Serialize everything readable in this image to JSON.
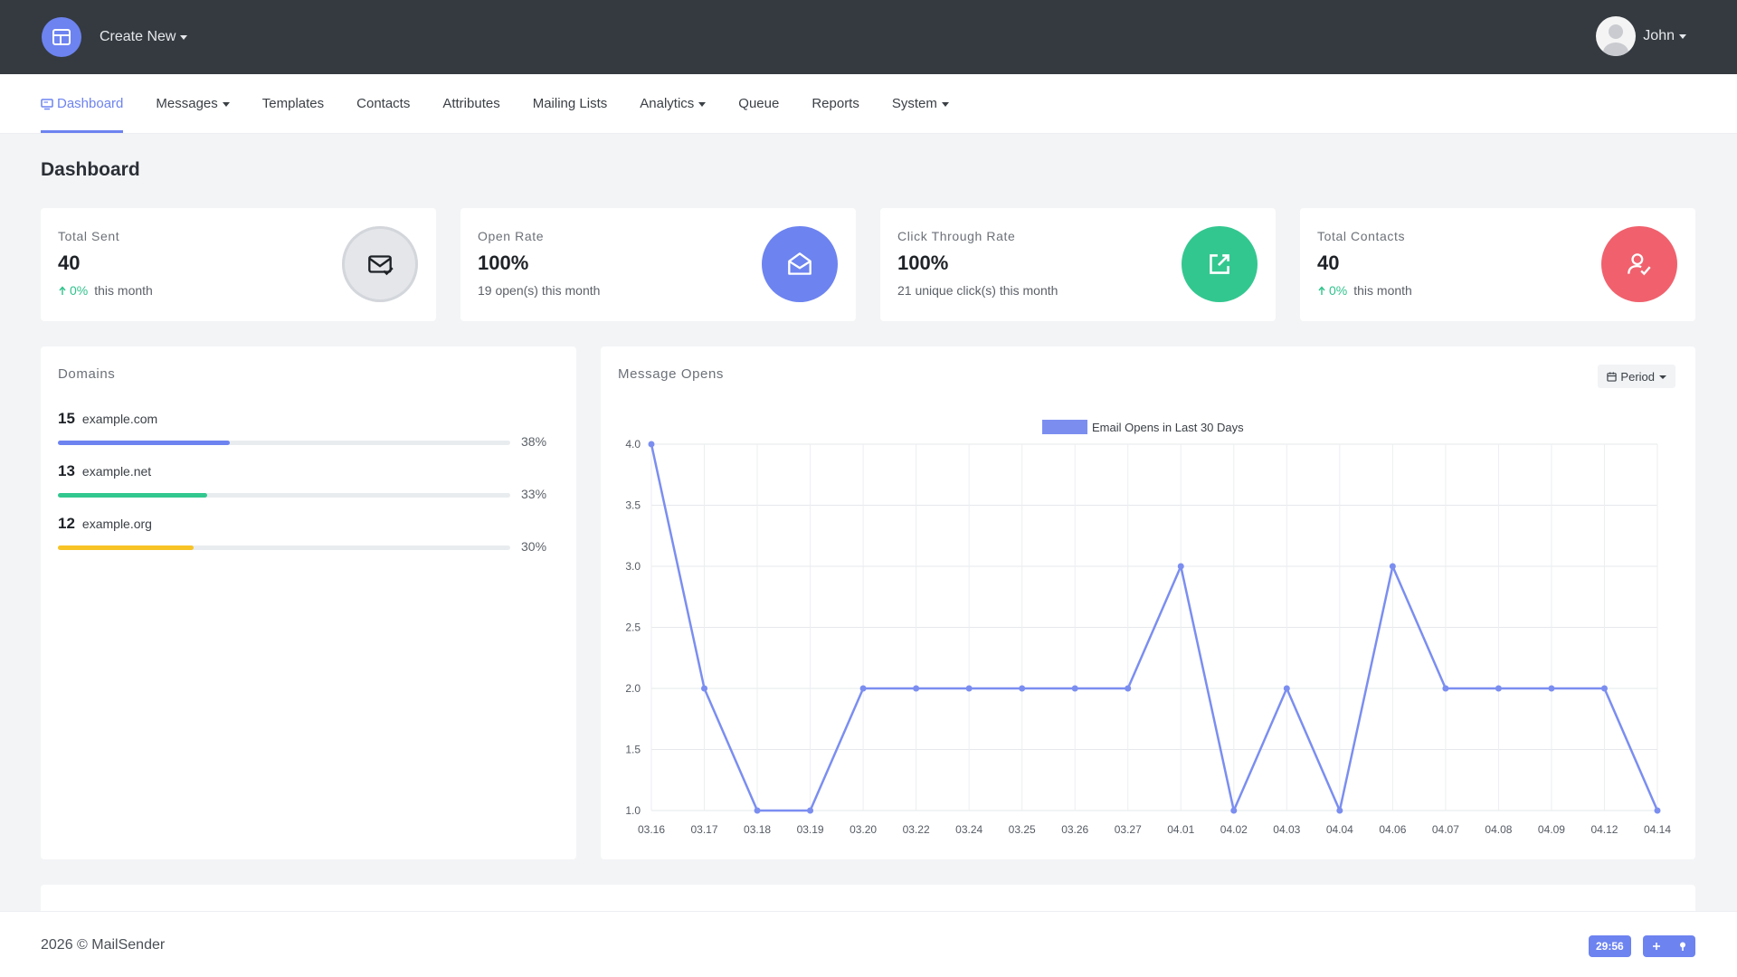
{
  "topbar": {
    "create_new_label": "Create New",
    "user_name": "John"
  },
  "nav": {
    "items": [
      {
        "label": "Dashboard",
        "active": true,
        "dropdown": false
      },
      {
        "label": "Messages",
        "dropdown": true
      },
      {
        "label": "Templates",
        "dropdown": false
      },
      {
        "label": "Contacts",
        "dropdown": false
      },
      {
        "label": "Attributes",
        "dropdown": false
      },
      {
        "label": "Mailing Lists",
        "dropdown": false
      },
      {
        "label": "Analytics",
        "dropdown": true
      },
      {
        "label": "Queue",
        "dropdown": false
      },
      {
        "label": "Reports",
        "dropdown": false
      },
      {
        "label": "System",
        "dropdown": true
      }
    ]
  },
  "page": {
    "title": "Dashboard"
  },
  "stats": [
    {
      "label": "Total Sent",
      "value": "40",
      "change": "0%",
      "sub": "this month",
      "icon": "mail-check-icon",
      "icon_bg": "#e4e6ea",
      "icon_color": "#1f2328"
    },
    {
      "label": "Open Rate",
      "value": "100%",
      "change": "",
      "sub": "19 open(s) this month",
      "icon": "mail-open-icon",
      "icon_bg": "#6d83f0",
      "icon_color": "#ffffff"
    },
    {
      "label": "Click Through Rate",
      "value": "100%",
      "change": "",
      "sub": "21 unique click(s) this month",
      "icon": "external-link-icon",
      "icon_bg": "#33c790",
      "icon_color": "#ffffff"
    },
    {
      "label": "Total Contacts",
      "value": "40",
      "change": "0%",
      "sub": "this month",
      "icon": "user-check-icon",
      "icon_bg": "#f0616d",
      "icon_color": "#ffffff"
    }
  ],
  "domains": {
    "title": "Domains",
    "items": [
      {
        "count": "15",
        "name": "example.com",
        "percent": "38%",
        "fraction": 0.38,
        "color": "#6d83f0"
      },
      {
        "count": "13",
        "name": "example.net",
        "percent": "33%",
        "fraction": 0.33,
        "color": "#33c790"
      },
      {
        "count": "12",
        "name": "example.org",
        "percent": "30%",
        "fraction": 0.3,
        "color": "#f7c325"
      }
    ]
  },
  "opens_card": {
    "title": "Message Opens",
    "period_label": "Period"
  },
  "chart_data": {
    "type": "line",
    "categories": [
      "03.16",
      "03.17",
      "03.18",
      "03.19",
      "03.20",
      "03.22",
      "03.24",
      "03.25",
      "03.26",
      "03.27",
      "04.01",
      "04.02",
      "04.03",
      "04.04",
      "04.06",
      "04.07",
      "04.08",
      "04.09",
      "04.12",
      "04.14"
    ],
    "series": [
      {
        "name": "Email Opens in Last 30 Days",
        "values": [
          4,
          2,
          1,
          1,
          2,
          2,
          2,
          2,
          2,
          2,
          3,
          1,
          2,
          1,
          3,
          2,
          2,
          2,
          2,
          1
        ],
        "color": "#7b8ef0"
      }
    ],
    "ylim": [
      1.0,
      4.0
    ],
    "yticks": [
      "4.0",
      "3.5",
      "3.0",
      "2.5",
      "2.0",
      "1.5",
      "1.0"
    ],
    "grid": true,
    "legend": "top-center"
  },
  "footer": {
    "copyright": "2026 © MailSender",
    "timer": "29:56"
  }
}
